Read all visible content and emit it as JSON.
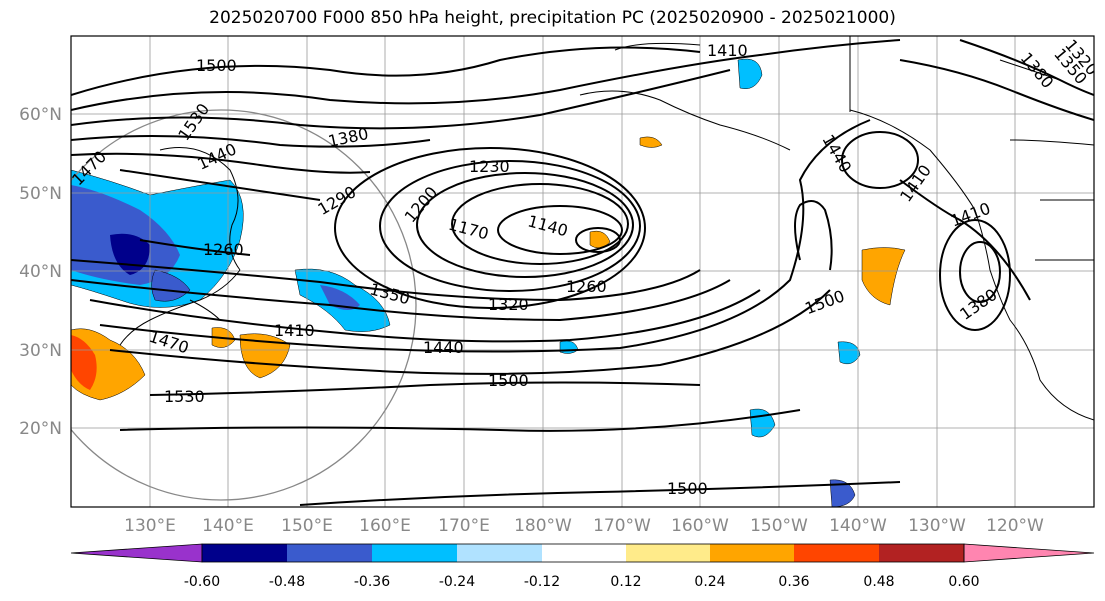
{
  "title": "2025020700 F000 850 hPa height, precipitation PC (2025020900 - 2025021000)",
  "lat_labels": [
    "60°N",
    "50°N",
    "40°N",
    "30°N",
    "20°N"
  ],
  "lon_labels": [
    "130°E",
    "140°E",
    "150°E",
    "160°E",
    "170°E",
    "180°W",
    "170°W",
    "160°W",
    "150°W",
    "140°W",
    "130°W",
    "120°W"
  ],
  "contour_labels": [
    "1500",
    "1530",
    "1440",
    "1410",
    "1380",
    "1290",
    "1260",
    "1200",
    "1230",
    "1170",
    "1140",
    "1260",
    "1320",
    "1350",
    "1410",
    "1440",
    "1470",
    "1500",
    "1530",
    "1500",
    "1500",
    "1440",
    "1410",
    "1410",
    "1380",
    "1380",
    "1350",
    "1320",
    "1470"
  ],
  "colorbar": {
    "ticks": [
      "-0.60",
      "-0.48",
      "-0.36",
      "-0.24",
      "-0.12",
      "0.12",
      "0.24",
      "0.36",
      "0.48",
      "0.60"
    ],
    "colors": [
      "#9932CC",
      "#00008B",
      "#3A5BCD",
      "#00BFFF",
      "#B0E2FF",
      "#FFFFFF",
      "#FFEB8A",
      "#FFA500",
      "#FF4500",
      "#B22222",
      "#FF85B0"
    ]
  }
}
